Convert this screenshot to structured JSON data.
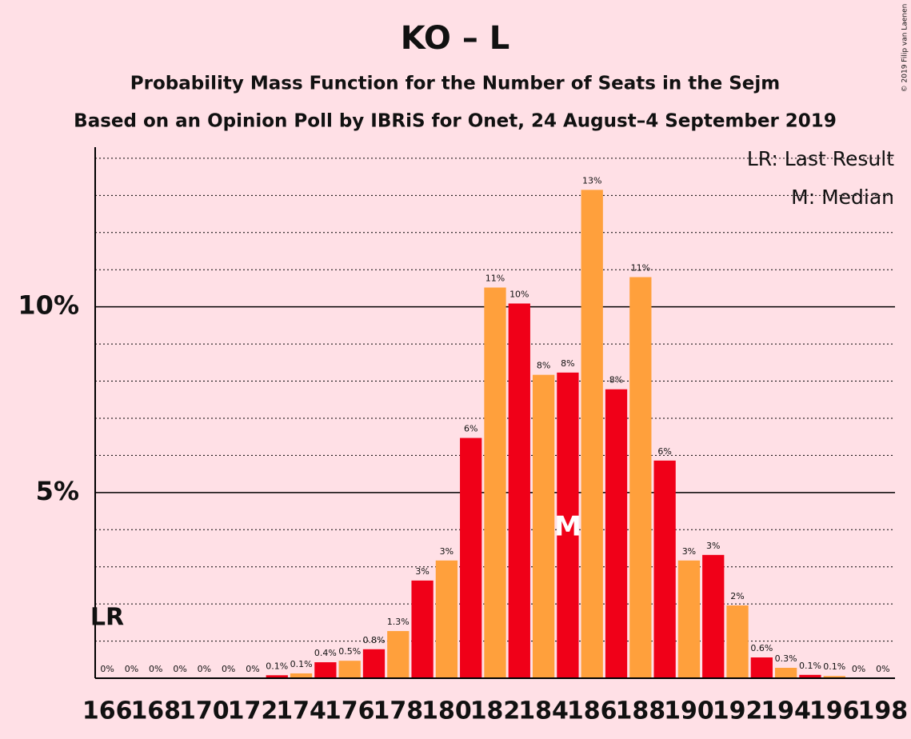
{
  "chart_data": {
    "type": "bar",
    "title": "KO – L",
    "subtitle": "Probability Mass Function for the Number of Seats in the Sejm",
    "subtitle2": "Based on an Opinion Poll by IBRiS for Onet, 24 August–4 September 2019",
    "copyright": "© 2019 Filip van Laenen",
    "x": [
      166,
      167,
      168,
      169,
      170,
      171,
      172,
      173,
      174,
      175,
      176,
      177,
      178,
      179,
      180,
      181,
      182,
      183,
      184,
      185,
      186,
      187,
      188,
      189,
      190,
      191,
      192,
      193,
      194,
      195,
      196,
      197,
      198
    ],
    "values": [
      0,
      0,
      0,
      0,
      0,
      0,
      0,
      0.08,
      0.13,
      0.43,
      0.47,
      0.78,
      1.27,
      2.63,
      3.17,
      6.47,
      10.52,
      10.09,
      8.17,
      8.23,
      13.15,
      7.78,
      10.8,
      5.86,
      3.17,
      3.32,
      1.96,
      0.56,
      0.28,
      0.09,
      0.06,
      0,
      0
    ],
    "value_labels": [
      "0%",
      "0%",
      "0%",
      "0%",
      "0%",
      "0%",
      "0%",
      "0.1%",
      "0.1%",
      "0.4%",
      "0.5%",
      "0.8%",
      "1.3%",
      "3%",
      "3%",
      "6%",
      "11%",
      "10%",
      "8%",
      "8%",
      "13%",
      "8%",
      "11%",
      "6%",
      "3%",
      "3%",
      "2%",
      "0.6%",
      "0.3%",
      "0.1%",
      "0.1%",
      "0%",
      "0%"
    ],
    "colors": [
      "#ffa03c",
      "#f00018",
      "#ffa03c",
      "#f00018",
      "#ffa03c",
      "#f00018",
      "#ffa03c",
      "#f00018",
      "#ffa03c",
      "#f00018",
      "#ffa03c",
      "#f00018",
      "#ffa03c",
      "#f00018",
      "#ffa03c",
      "#f00018",
      "#ffa03c",
      "#f00018",
      "#ffa03c",
      "#f00018",
      "#ffa03c",
      "#f00018",
      "#ffa03c",
      "#f00018",
      "#ffa03c",
      "#f00018",
      "#ffa03c",
      "#f00018",
      "#ffa03c",
      "#f00018",
      "#ffa03c",
      "#f00018",
      "#ffa03c"
    ],
    "xlim": [
      165.5,
      198.5
    ],
    "xticks": [
      166,
      168,
      170,
      172,
      174,
      176,
      178,
      180,
      182,
      184,
      186,
      188,
      190,
      192,
      194,
      196,
      198
    ],
    "ylim": [
      0,
      14.3
    ],
    "yticks": [
      {
        "value": 5,
        "label": "5%"
      },
      {
        "value": 10,
        "label": "10%"
      }
    ],
    "minor_yticks": [
      1,
      2,
      3,
      4,
      6,
      7,
      8,
      9,
      11,
      12,
      13,
      14
    ],
    "last_result": 166,
    "last_result_label": "LR",
    "median": 185,
    "median_label": "M",
    "legend": [
      "LR: Last Result",
      "M: Median"
    ]
  }
}
